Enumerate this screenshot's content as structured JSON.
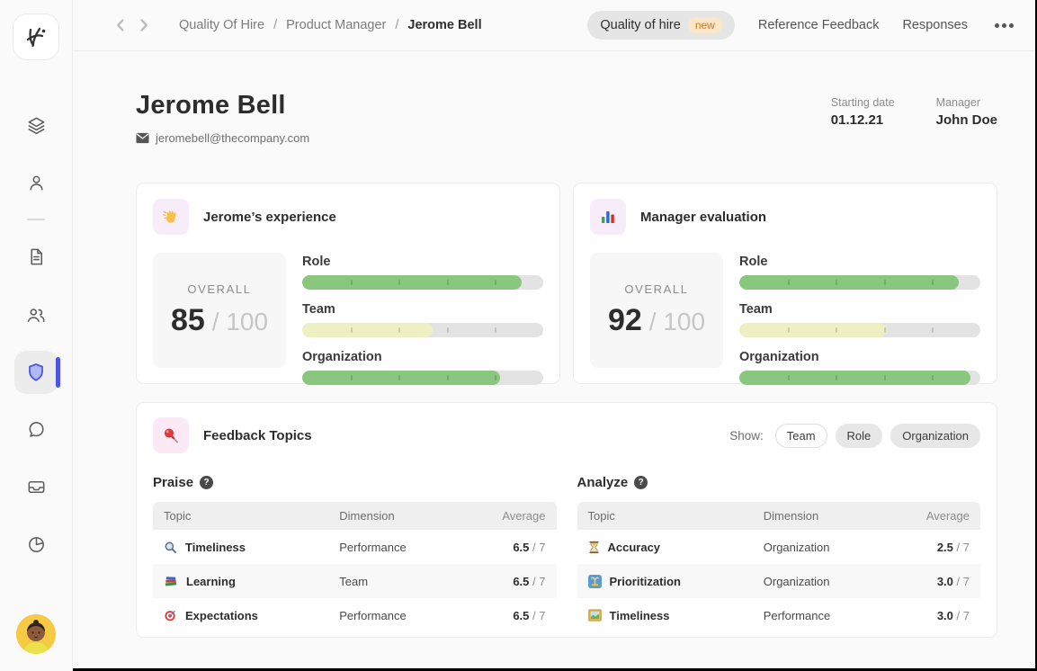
{
  "colors": {
    "accent_indigo": "#4a54e8",
    "bar_green": "#89c77f",
    "bar_yellow": "#eef0c2",
    "badge_orange_bg": "#fbe6c8",
    "badge_orange_text": "#bf7a24"
  },
  "sidebar": {
    "icons": [
      "layers-icon",
      "person-icon",
      "document-icon",
      "people-icon",
      "shield-icon",
      "chat-icon",
      "inbox-icon",
      "pie-chart-icon"
    ],
    "active_icon": "shield-icon"
  },
  "topbar": {
    "breadcrumb": {
      "item1": "Quality Of Hire",
      "sep1": "/",
      "item2": "Product Manager",
      "sep2": "/",
      "current": "Jerome Bell"
    },
    "tabs": {
      "quality": {
        "label": "Quality of hire",
        "badge": "new",
        "active": true
      },
      "reference": {
        "label": "Reference Feedback"
      },
      "responses": {
        "label": "Responses"
      }
    }
  },
  "profile": {
    "name": "Jerome Bell",
    "email": "jeromebell@thecompany.com",
    "stats": {
      "starting": {
        "label": "Starting date",
        "value": "01.12.21"
      },
      "manager": {
        "label": "Manager",
        "value": "John Doe"
      }
    }
  },
  "cards": {
    "experience": {
      "icon": "wave-hand-icon",
      "title": "Jerome’s experience",
      "overall_label": "OVERALL",
      "score": "85",
      "denominator": "/ 100",
      "bars": {
        "role": {
          "label": "Role",
          "pct": 91,
          "color": "#89c77f"
        },
        "team": {
          "label": "Team",
          "pct": 54,
          "color": "#eef0c2"
        },
        "org": {
          "label": "Organization",
          "pct": 82,
          "color": "#89c77f"
        }
      }
    },
    "manager_eval": {
      "icon": "bar-chart-icon",
      "title": "Manager evaluation",
      "overall_label": "OVERALL",
      "score": "92",
      "denominator": "/ 100",
      "bars": {
        "role": {
          "label": "Role",
          "pct": 91,
          "color": "#89c77f"
        },
        "team": {
          "label": "Team",
          "pct": 61,
          "color": "#eef0c2"
        },
        "org": {
          "label": "Organization",
          "pct": 96,
          "color": "#89c77f"
        }
      }
    }
  },
  "feedback": {
    "icon": "pushpin-icon",
    "title": "Feedback Topics",
    "show_label": "Show:",
    "filters": {
      "team": "Team",
      "role": "Role",
      "organization": "Organization"
    },
    "praise": {
      "title": "Praise",
      "headers": {
        "topic": "Topic",
        "dimension": "Dimension",
        "average": "Average"
      },
      "rows": {
        "r1": {
          "icon": "magnifier-icon",
          "topic": "Timeliness",
          "dimension": "Performance",
          "average": "6.5",
          "of": "/ 7"
        },
        "r2": {
          "icon": "books-icon",
          "topic": "Learning",
          "dimension": "Team",
          "average": "6.5",
          "of": "/ 7"
        },
        "r3": {
          "icon": "dart-icon",
          "topic": "Expectations",
          "dimension": "Performance",
          "average": "6.5",
          "of": "/ 7"
        }
      }
    },
    "analyze": {
      "title": "Analyze",
      "headers": {
        "topic": "Topic",
        "dimension": "Dimension",
        "average": "Average"
      },
      "rows": {
        "r1": {
          "icon": "hourglass-icon",
          "topic": "Accuracy",
          "dimension": "Organization",
          "average": "2.5",
          "of": "/ 7"
        },
        "r2": {
          "icon": "fountain-icon",
          "topic": "Prioritization",
          "dimension": "Organization",
          "average": "3.0",
          "of": "/ 7"
        },
        "r3": {
          "icon": "framed-picture-icon",
          "topic": "Timeliness",
          "dimension": "Performance",
          "average": "3.0",
          "of": "/ 7"
        }
      }
    }
  }
}
